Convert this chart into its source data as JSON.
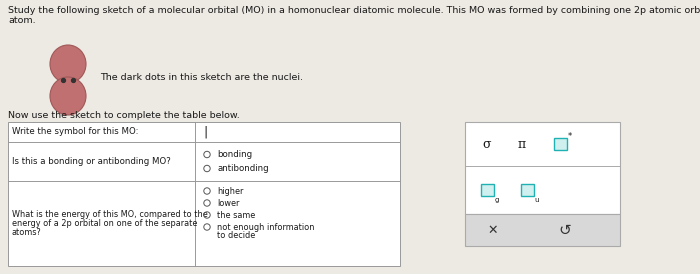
{
  "bg_color": "#ede9e3",
  "title_line1": "Study the following sketch of a molecular orbital (MO) in a homonuclear diatomic molecule. This MO was formed by combining one 2p atomic orbital from each",
  "title_line2": "atom.",
  "orbital_caption": "The dark dots in this sketch are the nuclei.",
  "table_instruction": "Now use the sketch to complete the table below.",
  "row1_label": "Write the symbol for this MO:",
  "row2_label": "Is this a bonding or antibonding MO?",
  "row2_options": [
    "bonding",
    "antibonding"
  ],
  "row3_label_line1": "What is the energy of this MO, compared to the",
  "row3_label_line2": "energy of a 2p orbital on one of the separate",
  "row3_label_line3": "atoms?",
  "row3_options": [
    "higher",
    "lower",
    "the same",
    "not enough information"
  ],
  "row3_option4b": "to decide",
  "table_border": "#999999",
  "text_color": "#1a1a1a",
  "font_size_title": 6.8,
  "font_size_table": 6.2,
  "sphere_color": "#c07070",
  "sphere_edge": "#a05858",
  "nucleus_color": "#333333",
  "panel_border": "#aaaaaa",
  "panel_teal": "#20b2b2",
  "panel_teal_fill": "#d0f0f0",
  "panel_gray_fill": "#d8d8d8"
}
